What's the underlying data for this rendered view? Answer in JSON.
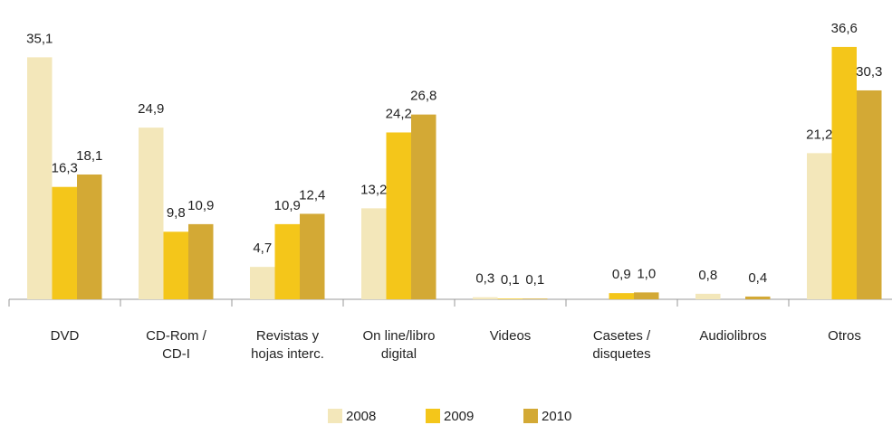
{
  "chart_data": {
    "type": "bar",
    "categories": [
      "DVD",
      "CD-Rom /\nCD-I",
      "Revistas y\nhojas interc.",
      "On line/libro\ndigital",
      "Videos",
      "Casetes /\ndisquetes",
      "Audiolibros",
      "Otros"
    ],
    "series": [
      {
        "name": "2008",
        "color": "#f3e7ba",
        "values": [
          35.1,
          24.9,
          4.7,
          13.2,
          0.3,
          null,
          0.8,
          21.2
        ],
        "value_labels": [
          "35,1",
          "24,9",
          "4,7",
          "13,2",
          "0,3",
          null,
          "0,8",
          "21,2"
        ]
      },
      {
        "name": "2009",
        "color": "#f4c61a",
        "values": [
          16.3,
          9.8,
          10.9,
          24.2,
          0.1,
          0.9,
          null,
          36.6
        ],
        "value_labels": [
          "16,3",
          "9,8",
          "10,9",
          "24,2",
          "0,1",
          "0,9",
          null,
          "36,6"
        ]
      },
      {
        "name": "2010",
        "color": "#d3a935",
        "values": [
          18.1,
          10.9,
          12.4,
          26.8,
          0.1,
          1.0,
          0.4,
          30.3
        ],
        "value_labels": [
          "18,1",
          "10,9",
          "12,4",
          "26,8",
          "0,1",
          "1,0",
          "0,4",
          "30,3"
        ]
      }
    ],
    "ylim": [
      0,
      40
    ],
    "legend": "bottom"
  }
}
